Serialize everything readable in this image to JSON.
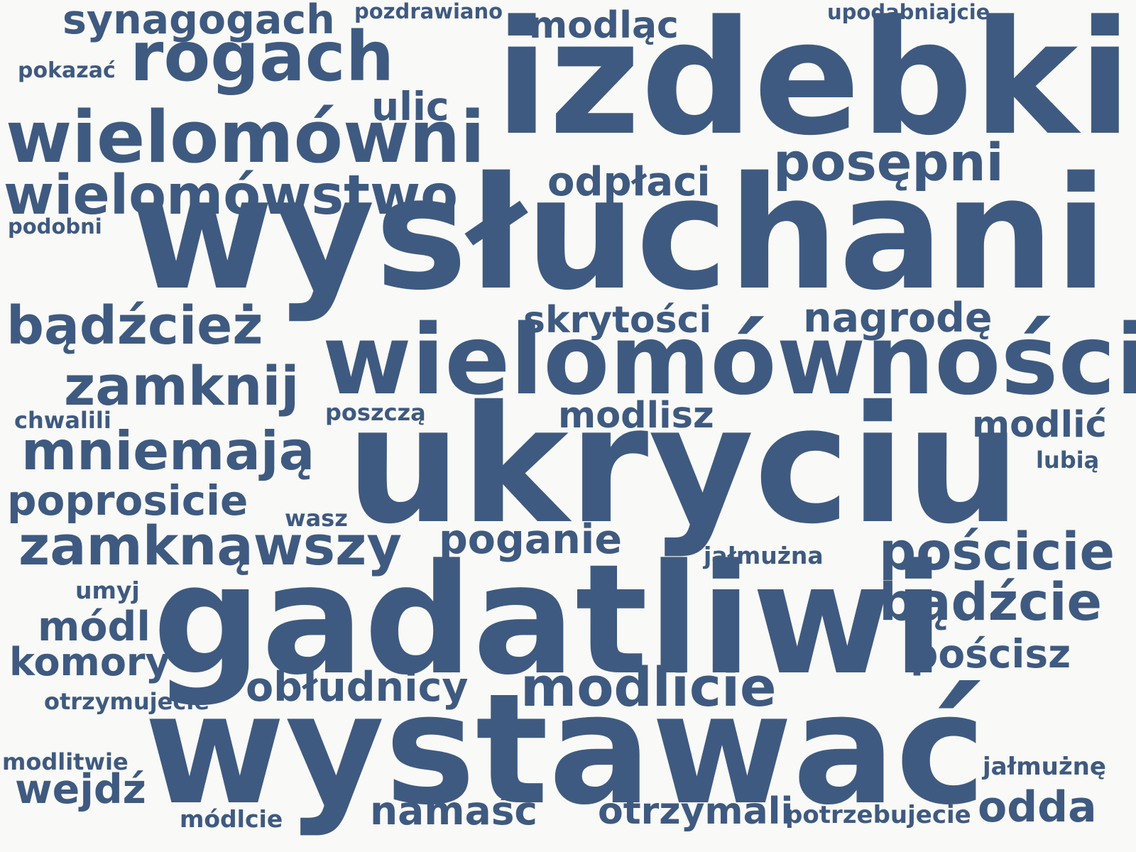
{
  "word_cloud": {
    "text_color": "#3f5a80",
    "background_color": "#f9f9f7",
    "words": [
      {
        "id": "synagogach",
        "text": "synagogach"
      },
      {
        "id": "pozdrawiano",
        "text": "pozdrawiano"
      },
      {
        "id": "modlac",
        "text": "modląc"
      },
      {
        "id": "upodabniajcie",
        "text": "upodabniajcie"
      },
      {
        "id": "rogach",
        "text": "rogach"
      },
      {
        "id": "pokazac",
        "text": "pokazać"
      },
      {
        "id": "izdebki",
        "text": "izdebki"
      },
      {
        "id": "ulic",
        "text": "ulic"
      },
      {
        "id": "wielomowni",
        "text": "wielomówni"
      },
      {
        "id": "posepni",
        "text": "posępni"
      },
      {
        "id": "odplaci",
        "text": "odpłaci"
      },
      {
        "id": "wielomowstwo",
        "text": "wielomówstwo"
      },
      {
        "id": "podobni",
        "text": "podobni"
      },
      {
        "id": "wysluchani",
        "text": "wysłuchani"
      },
      {
        "id": "badzciez",
        "text": "bądźcież"
      },
      {
        "id": "skrytosci",
        "text": "skrytości"
      },
      {
        "id": "nagrode",
        "text": "nagrodę"
      },
      {
        "id": "wielomownosci",
        "text": "wielomówności"
      },
      {
        "id": "zamknij",
        "text": "zamknij"
      },
      {
        "id": "chwalili",
        "text": "chwalili"
      },
      {
        "id": "poszcza",
        "text": "poszczą"
      },
      {
        "id": "modlisz",
        "text": "modlisz"
      },
      {
        "id": "modlic",
        "text": "modlić"
      },
      {
        "id": "mniemaja",
        "text": "mniemają"
      },
      {
        "id": "lubia",
        "text": "lubią"
      },
      {
        "id": "ukryciu",
        "text": "ukryciu"
      },
      {
        "id": "poprosicie",
        "text": "poprosicie"
      },
      {
        "id": "wasz",
        "text": "wasz"
      },
      {
        "id": "zamknawszy",
        "text": "zamknąwszy"
      },
      {
        "id": "poganie",
        "text": "poganie"
      },
      {
        "id": "jalmuzna",
        "text": "jałmużna"
      },
      {
        "id": "poscicie",
        "text": "pościcie"
      },
      {
        "id": "umyj",
        "text": "umyj"
      },
      {
        "id": "modl",
        "text": "módl"
      },
      {
        "id": "gadatliwi",
        "text": "gadatliwi"
      },
      {
        "id": "badzcie",
        "text": "bądźcie"
      },
      {
        "id": "komory",
        "text": "komory"
      },
      {
        "id": "poscisz",
        "text": "pościsz"
      },
      {
        "id": "obludnicy",
        "text": "obłudnicy"
      },
      {
        "id": "modlicie",
        "text": "modlicie"
      },
      {
        "id": "otrzymujecie",
        "text": "otrzymujecie"
      },
      {
        "id": "modlitwie",
        "text": "modlitwie"
      },
      {
        "id": "wystawac",
        "text": "wystawać"
      },
      {
        "id": "jalmuzne",
        "text": "jałmużnę"
      },
      {
        "id": "wejdz",
        "text": "wejdź"
      },
      {
        "id": "modlcie",
        "text": "módlcie"
      },
      {
        "id": "namasc",
        "text": "namaść"
      },
      {
        "id": "otrzymali",
        "text": "otrzymali"
      },
      {
        "id": "potrzebujecie",
        "text": "potrzebujecie"
      },
      {
        "id": "odda",
        "text": "odda"
      }
    ]
  }
}
